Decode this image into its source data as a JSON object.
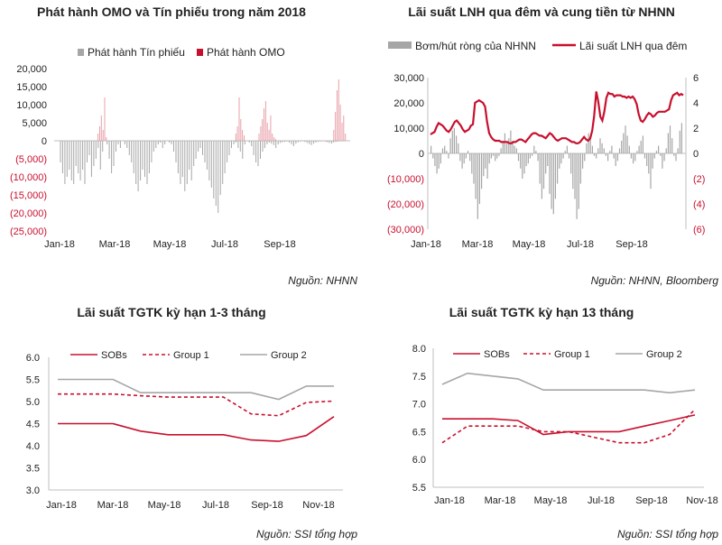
{
  "colors": {
    "red": "#c8102e",
    "grey": "#a6a6a6",
    "lightred": "#e8a0a8",
    "axis": "#bfbfbf"
  },
  "panels": [
    {
      "title": "Phát hành OMO và Tín phiếu trong năm 2018",
      "source": "Nguồn: NHNN"
    },
    {
      "title": "Lãi suất LNH qua đêm và cung tiền từ NHNN",
      "source": "Nguồn: NHNN, Bloomberg"
    },
    {
      "title": "Lãi suất TGTK kỳ hạn 1-3 tháng",
      "source": "Nguồn: SSI tổng hợp"
    },
    {
      "title": "Lãi suất TGTK kỳ hạn 13 tháng",
      "source": "Nguồn: SSI tổng hợp"
    }
  ],
  "chart_data": [
    {
      "type": "bar",
      "title": "Phát hành OMO và Tín phiếu trong năm 2018",
      "x_tick_labels": [
        "Jan-18",
        "Mar-18",
        "May-18",
        "Jul-18",
        "Sep-18"
      ],
      "y_tick_labels": [
        "20,000",
        "15,000",
        "10,000",
        "5,000",
        "0",
        "(5,000)",
        "(10,000)",
        "(15,000)",
        "(20,000)",
        "(25,000)"
      ],
      "ylim": [
        -25000,
        20000
      ],
      "series": [
        {
          "name": "Phát hành Tín phiếu",
          "color": "#a6a6a6",
          "values": [
            0,
            -6000,
            -9000,
            -12000,
            -10000,
            -8000,
            -11000,
            -12000,
            -7000,
            -9000,
            -11000,
            -8000,
            -12000,
            -6000,
            -4000,
            -10000,
            -7000,
            -5000,
            -2000,
            -8000,
            -3000,
            0,
            -1000,
            -5000,
            -9000,
            -7000,
            -3000,
            -1000,
            -2000,
            0,
            -1000,
            -2000,
            -4000,
            -6000,
            -9000,
            -12000,
            -14000,
            -11000,
            -8000,
            -10000,
            -12000,
            -9000,
            -6000,
            -3000,
            -2000,
            -1000,
            -500,
            -2000,
            -1000,
            0,
            -500,
            -1000,
            -3000,
            -6000,
            -9000,
            -12000,
            -10000,
            -14000,
            -12000,
            -8000,
            -11000,
            -7000,
            -5000,
            -3000,
            -2000,
            -4000,
            -6000,
            -8000,
            -11000,
            -13000,
            -16000,
            -18000,
            -20000,
            -15000,
            -12000,
            -9000,
            -6000,
            -4000,
            -2000,
            -1000,
            -500,
            -2000,
            -3000,
            -5000,
            -1000,
            0,
            -500,
            -1500,
            -4000,
            -6000,
            -7000,
            -5000,
            -3000,
            -2000,
            -1000,
            -500,
            -800,
            -1200,
            -2000,
            -1000,
            -600,
            -400,
            -300,
            -200,
            -500,
            -1000,
            -1500,
            -800,
            -400,
            -200,
            -100,
            -300,
            -600,
            -900,
            -1200,
            -800,
            -500,
            -300,
            -200,
            -100,
            -200,
            -400,
            -600,
            -800,
            -500,
            -300,
            -200,
            -100,
            -50,
            -100
          ]
        },
        {
          "name": "Phát hành OMO",
          "color": "#e8a0a8",
          "values": [
            0,
            0,
            0,
            0,
            0,
            0,
            0,
            0,
            0,
            0,
            0,
            0,
            0,
            0,
            0,
            0,
            0,
            0,
            0,
            0,
            0,
            0,
            0,
            0,
            2000,
            4000,
            7000,
            3000,
            12000,
            1000,
            0,
            0,
            0,
            0,
            0,
            0,
            0,
            0,
            0,
            0,
            0,
            0,
            0,
            0,
            0,
            0,
            0,
            0,
            0,
            0,
            0,
            0,
            0,
            0,
            0,
            0,
            0,
            0,
            0,
            0,
            0,
            0,
            0,
            0,
            0,
            0,
            0,
            0,
            0,
            0,
            0,
            0,
            0,
            0,
            0,
            0,
            0,
            0,
            0,
            0,
            0,
            0,
            0,
            0,
            0,
            0,
            0,
            0,
            0,
            0,
            0,
            0,
            0,
            0,
            0,
            0,
            0,
            0,
            0,
            0,
            0,
            0,
            0,
            0,
            0,
            0,
            0,
            2000,
            4000,
            12000,
            6000,
            3000,
            1500,
            0,
            0,
            0,
            0,
            0,
            0,
            0,
            0,
            2000,
            4000,
            6000,
            9000,
            11000,
            5000,
            3000,
            7000,
            2000,
            1000,
            500,
            0,
            0,
            0,
            0,
            0,
            0,
            0,
            0,
            0,
            0,
            0,
            0,
            0,
            0,
            0,
            0,
            0,
            0,
            0,
            0,
            0,
            0,
            0,
            0,
            0,
            0,
            0,
            0,
            0,
            0,
            0,
            0,
            0,
            0,
            3000,
            8000,
            14000,
            17000,
            10000,
            5000,
            7000,
            2000
          ]
        }
      ]
    },
    {
      "type": "bar+line",
      "title": "Lãi suất LNH qua đêm và cung tiền từ NHNN",
      "x_tick_labels": [
        "Jan-18",
        "Mar-18",
        "May-18",
        "Jul-18",
        "Sep-18"
      ],
      "y_left_tick_labels": [
        "30,000",
        "20,000",
        "10,000",
        "0",
        "(10,000)",
        "(20,000)",
        "(30,000)"
      ],
      "y_right_tick_labels": [
        "6",
        "4",
        "2",
        "0",
        "(2)",
        "(4)",
        "(6)"
      ],
      "ylim_left": [
        -30000,
        30000
      ],
      "ylim_right": [
        -6,
        6
      ],
      "series": [
        {
          "name": "Bơm/hút ròng của NHNN",
          "color": "#a6a6a6",
          "values": [
            3000,
            -2000,
            -5000,
            -8000,
            -6000,
            -4000,
            2000,
            3000,
            1000,
            -2000,
            6000,
            9000,
            10000,
            7000,
            4000,
            -3000,
            -6000,
            -4000,
            -2000,
            1000,
            -3000,
            -8000,
            -12000,
            -18000,
            -26000,
            -20000,
            -14000,
            -9000,
            -6000,
            -10000,
            -4000,
            -2000,
            -1000,
            -3000,
            -2000,
            -1000,
            2000,
            5000,
            8000,
            4000,
            6000,
            9000,
            5000,
            3000,
            2000,
            -3000,
            -6000,
            -10000,
            -8000,
            -5000,
            -4000,
            -2000,
            -1000,
            3000,
            1000,
            -3000,
            -12000,
            -18000,
            -14000,
            -8000,
            -5000,
            -16000,
            -22000,
            -24000,
            -18000,
            -12000,
            -6000,
            -4000,
            -2000,
            1000,
            3000,
            -2000,
            -8000,
            -14000,
            -18000,
            -26000,
            -22000,
            -12000,
            -6000,
            -3000,
            4000,
            8000,
            6000,
            3000,
            -1000,
            -2000,
            2000,
            6000,
            4000,
            2000,
            -1000,
            -3000,
            1000,
            3000,
            -2000,
            -5000,
            -3000,
            2000,
            5000,
            8000,
            11000,
            7000,
            3000,
            -2000,
            -4000,
            -3000,
            1000,
            3000,
            5000,
            7000,
            -2000,
            -5000,
            -8000,
            -14000,
            -6000,
            -2000,
            1000,
            3000,
            -1000,
            -6000,
            -3000,
            2000,
            8000,
            11000,
            6000,
            -1000,
            -3000,
            2000,
            9000,
            12000
          ]
        },
        {
          "name": "Lãi suất LNH qua đêm",
          "color": "#c8102e",
          "values": [
            1.5,
            1.6,
            1.7,
            2.1,
            2.4,
            2.3,
            2.2,
            2.0,
            1.8,
            1.7,
            1.9,
            2.2,
            2.5,
            2.6,
            2.4,
            2.2,
            1.9,
            1.7,
            1.8,
            1.9,
            2.2,
            2.3,
            4.0,
            4.1,
            4.2,
            4.1,
            4.0,
            3.7,
            2.5,
            1.6,
            1.3,
            1.1,
            1.0,
            1.0,
            1.0,
            0.9,
            0.9,
            0.9,
            0.9,
            0.8,
            0.8,
            0.9,
            0.9,
            1.0,
            1.1,
            1.1,
            1.0,
            0.9,
            1.1,
            1.3,
            1.5,
            1.6,
            1.6,
            1.5,
            1.4,
            1.4,
            1.3,
            1.2,
            1.4,
            1.6,
            1.5,
            1.3,
            1.1,
            1.0,
            1.1,
            1.2,
            1.2,
            1.2,
            1.1,
            1.0,
            0.9,
            0.9,
            0.8,
            0.8,
            0.9,
            1.1,
            1.3,
            1.1,
            1.0,
            1.2,
            1.8,
            3.0,
            4.9,
            4.1,
            2.9,
            2.6,
            3.3,
            4.4,
            4.8,
            4.7,
            4.7,
            4.5,
            4.6,
            4.6,
            4.6,
            4.5,
            4.5,
            4.4,
            4.5,
            4.4,
            4.5,
            4.3,
            3.9,
            3.1,
            2.6,
            2.5,
            2.7,
            3.0,
            3.2,
            3.1,
            2.9,
            3.0,
            3.2,
            3.3,
            3.3,
            3.3,
            3.3,
            3.4,
            3.5,
            4.2,
            4.6,
            4.7,
            4.8,
            4.6,
            4.7,
            4.6
          ]
        }
      ]
    },
    {
      "type": "line",
      "title": "Lãi suất TGTK kỳ hạn 1-3 tháng",
      "categories": [
        "Jan-18",
        "Feb-18",
        "Mar-18",
        "Apr-18",
        "May-18",
        "Jun-18",
        "Jul-18",
        "Aug-18",
        "Sep-18",
        "Oct-18",
        "Nov-18"
      ],
      "x_tick_labels": [
        "Jan-18",
        "Mar-18",
        "May-18",
        "Jul-18",
        "Sep-18",
        "Nov-18"
      ],
      "y_tick_labels": [
        "6.0",
        "5.5",
        "5.0",
        "4.5",
        "4.0",
        "3.5",
        "3.0"
      ],
      "ylim": [
        3.0,
        6.0
      ],
      "series": [
        {
          "name": "SOBs",
          "color": "#c8102e",
          "dash": "solid",
          "values": [
            4.5,
            4.5,
            4.5,
            4.33,
            4.25,
            4.25,
            4.25,
            4.13,
            4.1,
            4.23,
            4.66
          ]
        },
        {
          "name": "Group 1",
          "color": "#c8102e",
          "dash": "dashed",
          "values": [
            5.17,
            5.17,
            5.17,
            5.13,
            5.1,
            5.1,
            5.1,
            4.72,
            4.68,
            4.98,
            5.01
          ]
        },
        {
          "name": "Group 2",
          "color": "#a6a6a6",
          "dash": "solid",
          "values": [
            5.5,
            5.5,
            5.5,
            5.2,
            5.2,
            5.2,
            5.2,
            5.2,
            5.05,
            5.35,
            5.35
          ]
        }
      ]
    },
    {
      "type": "line",
      "title": "Lãi suất TGTK kỳ hạn 13 tháng",
      "categories": [
        "Jan-18",
        "Feb-18",
        "Mar-18",
        "Apr-18",
        "May-18",
        "Jun-18",
        "Jul-18",
        "Aug-18",
        "Sep-18",
        "Oct-18",
        "Nov-18"
      ],
      "x_tick_labels": [
        "Jan-18",
        "Mar-18",
        "May-18",
        "Jul-18",
        "Sep-18",
        "Nov-18"
      ],
      "y_tick_labels": [
        "8.0",
        "7.5",
        "7.0",
        "6.5",
        "6.0",
        "5.5"
      ],
      "ylim": [
        5.5,
        8.0
      ],
      "series": [
        {
          "name": "SOBs",
          "color": "#c8102e",
          "dash": "solid",
          "values": [
            6.73,
            6.73,
            6.73,
            6.7,
            6.45,
            6.5,
            6.5,
            6.5,
            6.6,
            6.7,
            6.8
          ]
        },
        {
          "name": "Group 1",
          "color": "#c8102e",
          "dash": "dashed",
          "values": [
            6.3,
            6.6,
            6.6,
            6.6,
            6.5,
            6.5,
            6.4,
            6.3,
            6.3,
            6.45,
            6.9
          ]
        },
        {
          "name": "Group 2",
          "color": "#a6a6a6",
          "dash": "solid",
          "values": [
            7.35,
            7.55,
            7.5,
            7.45,
            7.25,
            7.25,
            7.25,
            7.25,
            7.25,
            7.2,
            7.25
          ]
        }
      ]
    }
  ]
}
